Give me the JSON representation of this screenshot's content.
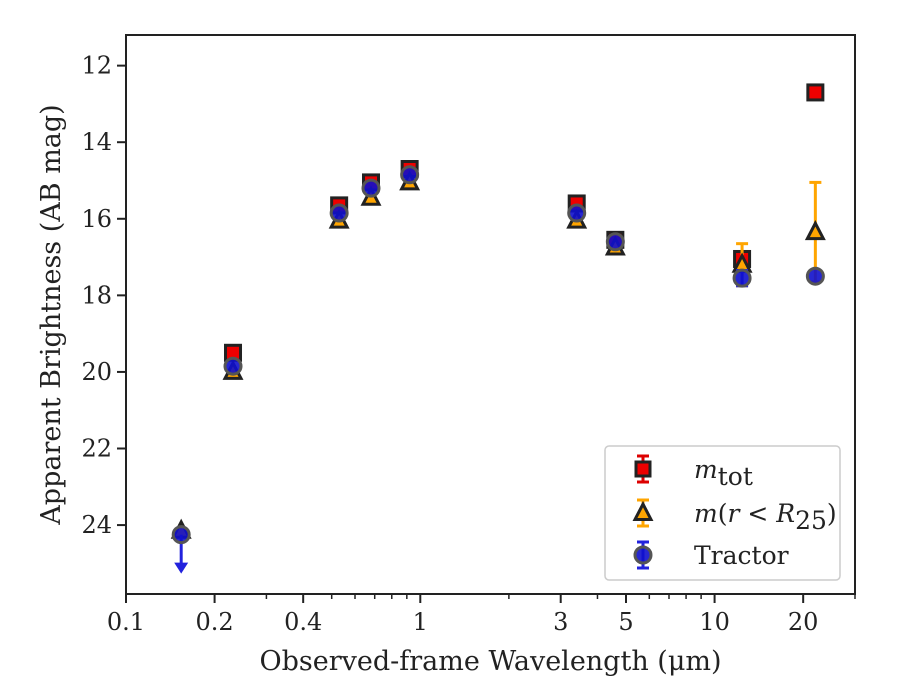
{
  "chart_data": {
    "type": "scatter",
    "title": "",
    "xlabel": "Observed-frame Wavelength (μm)",
    "ylabel": "Apparent Brightness (AB mag)",
    "xscale": "log",
    "xlim": [
      0.1,
      30
    ],
    "ylim": [
      25.8,
      11.2
    ],
    "y_inverted": true,
    "grid": false,
    "legend_position": "lower-right",
    "x_ticks": [
      {
        "value": 0.1,
        "label": "0.1"
      },
      {
        "value": 0.2,
        "label": "0.2"
      },
      {
        "value": 0.4,
        "label": "0.4"
      },
      {
        "value": 1,
        "label": "1"
      },
      {
        "value": 3,
        "label": "3"
      },
      {
        "value": 5,
        "label": "5"
      },
      {
        "value": 10,
        "label": "10"
      },
      {
        "value": 20,
        "label": "20"
      }
    ],
    "y_ticks": [
      {
        "value": 12,
        "label": "12"
      },
      {
        "value": 14,
        "label": "14"
      },
      {
        "value": 16,
        "label": "16"
      },
      {
        "value": 18,
        "label": "18"
      },
      {
        "value": 20,
        "label": "20"
      },
      {
        "value": 22,
        "label": "22"
      },
      {
        "value": 24,
        "label": "24"
      }
    ],
    "series": [
      {
        "name": "m_tot",
        "legend_label": {
          "base": "m",
          "sub": "tot"
        },
        "marker": "square",
        "color": "#ee0000",
        "edge_color": "#222222",
        "errorbar_color": "#dd0000",
        "x": [
          0.231,
          0.53,
          0.68,
          0.92,
          3.4,
          4.6,
          12.4,
          22.0
        ],
        "y": [
          19.5,
          15.65,
          15.05,
          14.7,
          15.6,
          16.55,
          17.05,
          12.7
        ],
        "yerr": [
          0,
          0,
          0,
          0,
          0,
          0,
          0,
          0
        ]
      },
      {
        "name": "m(r < R_25)",
        "legend_label": {
          "base": "m",
          "paren": "r",
          "op": " < ",
          "var": "R",
          "sub": "25"
        },
        "marker": "triangle",
        "color": "#ffa500",
        "edge_color": "#222222",
        "errorbar_color": "#ffa500",
        "x": [
          0.154,
          0.231,
          0.53,
          0.68,
          0.92,
          3.4,
          4.6,
          12.4,
          22.0
        ],
        "y": [
          24.15,
          20.0,
          16.05,
          15.45,
          15.05,
          16.05,
          16.75,
          17.2,
          16.35
        ],
        "yerr": [
          0,
          0,
          0,
          0,
          0,
          0,
          0,
          0.55,
          1.3
        ]
      },
      {
        "name": "Tractor",
        "legend_label": {
          "base": "Tractor"
        },
        "marker": "circle",
        "color": "#1010cc",
        "edge_color": "#555555",
        "errorbar_color": "#2222dd",
        "x": [
          0.154,
          0.231,
          0.53,
          0.68,
          0.92,
          3.4,
          4.6,
          12.4,
          22.0
        ],
        "y": [
          24.25,
          19.85,
          15.85,
          15.2,
          14.85,
          15.85,
          16.6,
          17.55,
          17.5
        ],
        "yerr": [
          0,
          0,
          0,
          0,
          0,
          0,
          0,
          0.2,
          0
        ],
        "upper_limit_index": 0
      }
    ]
  }
}
